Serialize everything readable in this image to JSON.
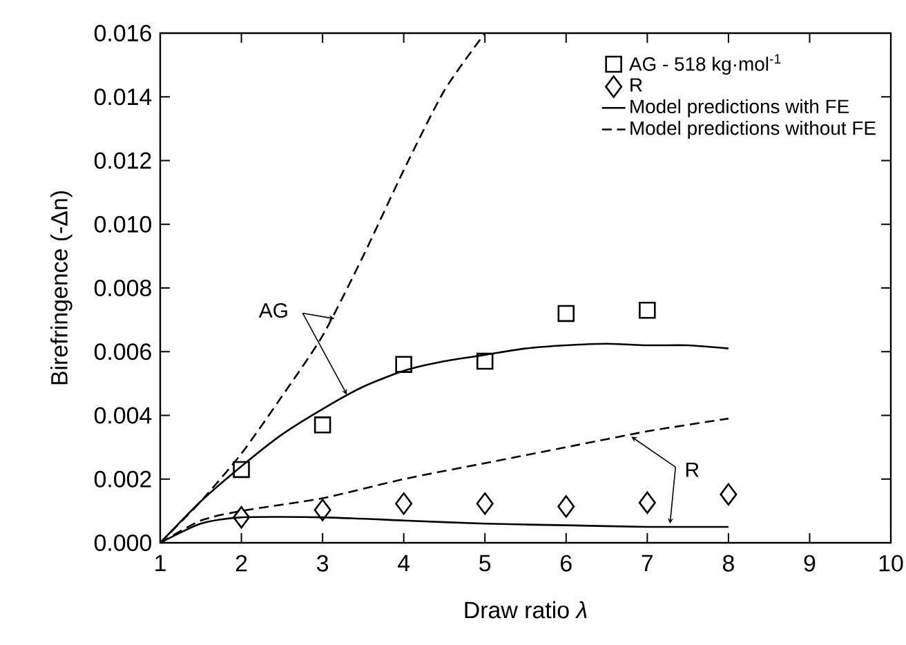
{
  "chart_data": {
    "type": "scatter",
    "xlabel": "Draw ratio *λ*",
    "ylabel": "Birefringence (-Δn)",
    "xlim": [
      1,
      10
    ],
    "xticks": [
      1,
      2,
      3,
      4,
      5,
      6,
      7,
      8,
      9,
      10
    ],
    "ylim": [
      0,
      0.016
    ],
    "yticks": [
      {
        "value": 0,
        "label": "0.000"
      },
      {
        "value": 0.002,
        "label": "0.002"
      },
      {
        "value": 0.004,
        "label": "0.004"
      },
      {
        "value": 0.006,
        "label": "0.006"
      },
      {
        "value": 0.008,
        "label": "0.008"
      },
      {
        "value": 0.01,
        "label": "0.010"
      },
      {
        "value": 0.012,
        "label": "0.012"
      },
      {
        "value": 0.014,
        "label": "0.014"
      },
      {
        "value": 0.016,
        "label": "0.016"
      }
    ],
    "grid": false,
    "legend": "top right",
    "annotations": [
      {
        "text": "AG",
        "x": 3.3,
        "y": 0.00465
      },
      {
        "text": "R",
        "x": 7.28,
        "y": 0.0006
      }
    ],
    "series": [
      {
        "name": "AG - 518 kg·mol$^{-1}$",
        "marker": "square",
        "color": "#000000",
        "x": [
          2,
          3,
          4,
          5,
          6,
          7
        ],
        "values": [
          0.0023,
          0.0037,
          0.0056,
          0.0057,
          0.0072,
          0.0073
        ]
      },
      {
        "name": "R",
        "marker": "diamond",
        "color": "#000000",
        "x": [
          2,
          3,
          4,
          5,
          6,
          7,
          8
        ],
        "values": [
          0.0008,
          0.00103,
          0.00123,
          0.00123,
          0.00114,
          0.00126,
          0.00152
        ]
      },
      {
        "name": "Model predictions with FE",
        "type": "line",
        "line_style": "solid",
        "color": "#000000",
        "x": [
          1,
          1.5,
          2,
          2.5,
          3,
          3.5,
          4,
          4.5,
          5,
          5.5,
          6,
          6.5,
          7,
          7.5,
          8
        ],
        "values": [
          0,
          0.0013,
          0.0024,
          0.0034,
          0.0042,
          0.0049,
          0.0054,
          0.0057,
          0.0059,
          0.0061,
          0.0062,
          0.00625,
          0.0062,
          0.0062,
          0.0061
        ]
      },
      {
        "name": "Model predictions without FE",
        "type": "line",
        "line_style": "dashed",
        "color": "#000000",
        "x": [
          1,
          1.5,
          2,
          2.5,
          3,
          3.5,
          4,
          4.5,
          5
        ],
        "values": [
          0,
          0.0013,
          0.0028,
          0.0046,
          0.0065,
          0.009,
          0.0117,
          0.0142,
          0.016
        ]
      },
      {
        "type": "line",
        "line_style": "solid",
        "color": "#000000",
        "x": [
          1,
          1.5,
          2,
          3,
          4,
          5,
          6,
          7,
          8
        ],
        "values": [
          0,
          0.0006,
          0.0008,
          0.0008,
          0.0007,
          0.0006,
          0.00055,
          0.0005,
          0.0005
        ]
      },
      {
        "type": "line",
        "line_style": "dashed",
        "color": "#000000",
        "x": [
          1,
          1.5,
          2,
          3,
          4,
          5,
          6,
          7,
          8
        ],
        "values": [
          0,
          0.0007,
          0.001,
          0.0014,
          0.002,
          0.0025,
          0.003,
          0.0035,
          0.0039
        ]
      }
    ]
  }
}
